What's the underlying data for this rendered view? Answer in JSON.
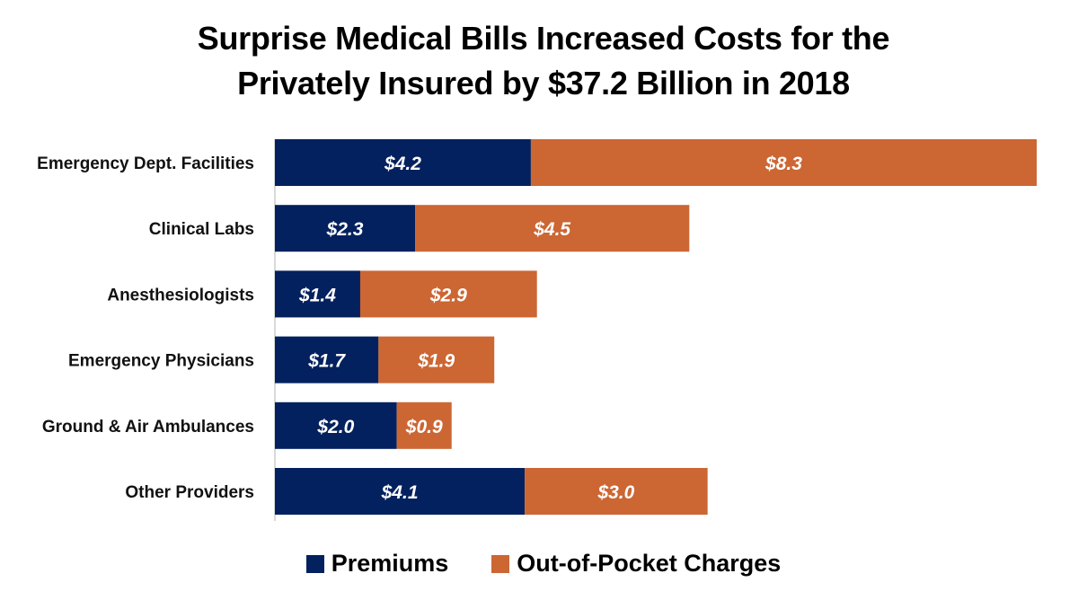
{
  "chart_data": {
    "type": "bar",
    "orientation": "horizontal",
    "stacked": true,
    "title_lines": [
      "Surprise Medical Bills Increased Costs for the",
      "Privately Insured by $37.2 Billion in 2018"
    ],
    "xlabel": "",
    "ylabel": "",
    "xlim": [
      0,
      12.5
    ],
    "grid": false,
    "legend_position": "bottom",
    "categories": [
      "Emergency Dept. Facilities",
      "Clinical Labs",
      "Anesthesiologists",
      "Emergency Physicians",
      "Ground & Air Ambulances",
      "Other Providers"
    ],
    "series": [
      {
        "name": "Premiums",
        "color": "#03215E",
        "values": [
          4.2,
          2.3,
          1.4,
          1.7,
          2.0,
          4.1
        ],
        "labels": [
          "$4.2",
          "$2.3",
          "$1.4",
          "$1.7",
          "$2.0",
          "$4.1"
        ]
      },
      {
        "name": "Out-of-Pocket Charges",
        "color": "#CC6633",
        "values": [
          8.3,
          4.5,
          2.9,
          1.9,
          0.9,
          3.0
        ],
        "labels": [
          "$8.3",
          "$4.5",
          "$2.9",
          "$1.9",
          "$0.9",
          "$3.0"
        ]
      }
    ]
  }
}
